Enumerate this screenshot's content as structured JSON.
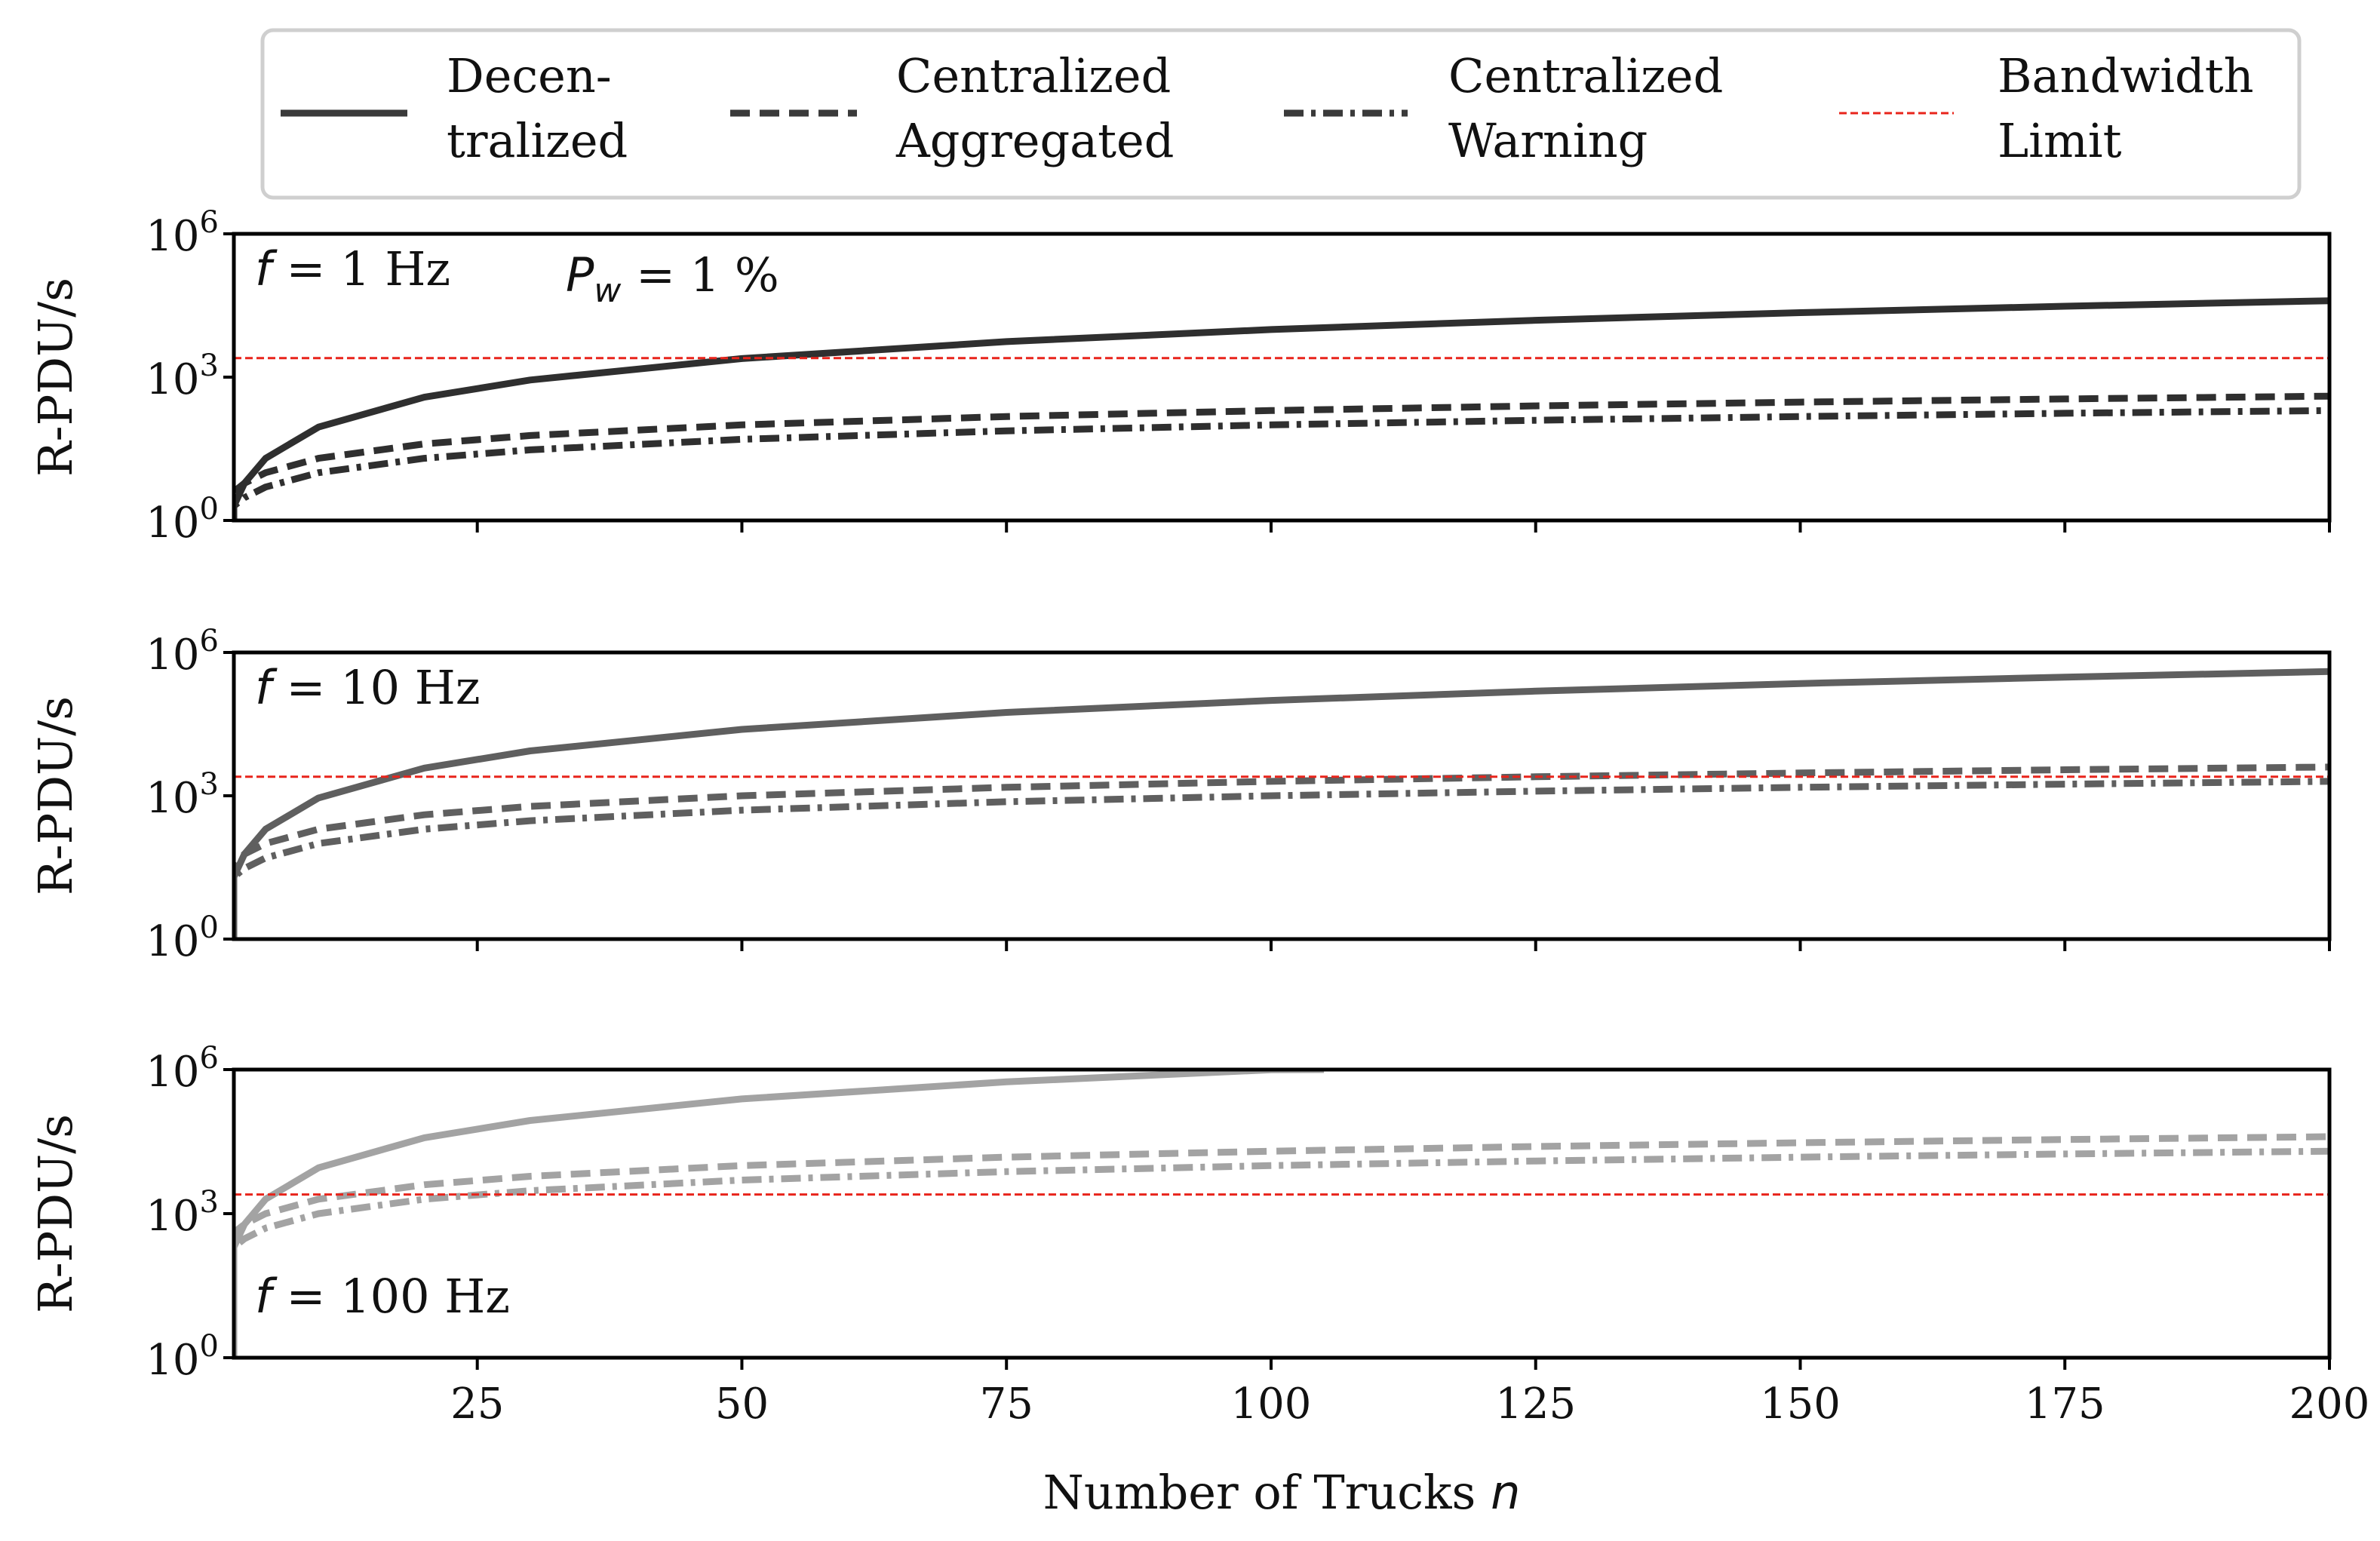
{
  "chart_data": {
    "type": "line",
    "xlabel": "Number of Trucks",
    "xlabel_var": "n",
    "xlim": [
      2,
      200
    ],
    "xticks": [
      25,
      50,
      75,
      100,
      125,
      150,
      175,
      200
    ],
    "yscale": "log",
    "ylim": [
      1,
      1000000
    ],
    "yticks": [
      {
        "base": "10",
        "exp": "0",
        "value": 1
      },
      {
        "base": "10",
        "exp": "3",
        "value": 1000
      },
      {
        "base": "10",
        "exp": "6",
        "value": 1000000
      }
    ],
    "ylabel": "R-PDU/s",
    "grid": false,
    "legend": {
      "placement": "top",
      "entries": [
        {
          "key": "decentralized",
          "lines": [
            "Decen-",
            "tralized"
          ],
          "style": "solid",
          "color": "#3a3a3a"
        },
        {
          "key": "aggregated",
          "lines": [
            "Centralized",
            "Aggregated"
          ],
          "style": "dashed",
          "color": "#3a3a3a"
        },
        {
          "key": "warning",
          "lines": [
            "Centralized",
            "Warning"
          ],
          "style": "dashdot",
          "color": "#3a3a3a"
        },
        {
          "key": "bandwidth",
          "lines": [
            "Bandwidth",
            "Limit"
          ],
          "style": "dotted",
          "color": "#e8241b"
        }
      ]
    },
    "bandwidth_limit": 2500,
    "pw_annotation": {
      "var": "P",
      "sub": "w",
      "text": "= 1 %"
    },
    "panels": [
      {
        "freq_hz": 1,
        "annotation": {
          "var": "f",
          "text": "= 1 Hz",
          "position": "top-left"
        },
        "color": "#2f2f2f",
        "series": [
          {
            "name": "Decentralized",
            "x": [
              2,
              3,
              5,
              10,
              20,
              30,
              50,
              75,
              100,
              125,
              150,
              175,
              200
            ],
            "y": [
              2,
              6,
              20,
              90,
              380,
              870,
              2450,
              5550,
              9900,
              15500,
              22350,
              30450,
              39800
            ]
          },
          {
            "name": "Centralized Aggregated",
            "x": [
              2,
              3,
              5,
              10,
              20,
              30,
              50,
              75,
              100,
              125,
              150,
              175,
              200
            ],
            "y": [
              4,
              6,
              10,
              20,
              40,
              60,
              100,
              150,
              200,
              250,
              300,
              350,
              400
            ]
          },
          {
            "name": "Centralized Warning",
            "x": [
              2,
              3,
              5,
              10,
              20,
              30,
              50,
              75,
              100,
              125,
              150,
              175,
              200
            ],
            "y": [
              2.0,
              3.0,
              5.0,
              10,
              20,
              30,
              50,
              75,
              100,
              125,
              150,
              175,
              200
            ]
          }
        ]
      },
      {
        "freq_hz": 10,
        "annotation": {
          "var": "f",
          "text": "= 10 Hz",
          "position": "top-left"
        },
        "color": "#5f5f5f",
        "series": [
          {
            "name": "Decentralized",
            "x": [
              2,
              3,
              5,
              10,
              20,
              30,
              50,
              75,
              100,
              125,
              150,
              175,
              200
            ],
            "y": [
              20,
              60,
              200,
              900,
              3800,
              8700,
              24500,
              55500,
              99000,
              155000,
              223500,
              304500,
              398000
            ]
          },
          {
            "name": "Centralized Aggregated",
            "x": [
              2,
              3,
              5,
              10,
              20,
              30,
              50,
              75,
              100,
              125,
              150,
              175,
              200
            ],
            "y": [
              40,
              60,
              100,
              200,
              400,
              600,
              1000,
              1500,
              2000,
              2500,
              3000,
              3500,
              4000
            ]
          },
          {
            "name": "Centralized Warning",
            "x": [
              2,
              3,
              5,
              10,
              20,
              30,
              50,
              75,
              100,
              125,
              150,
              175,
              200
            ],
            "y": [
              20,
              30,
              50,
              100,
              200,
              300,
              500,
              750,
              1000,
              1250,
              1500,
              1750,
              2000
            ]
          }
        ]
      },
      {
        "freq_hz": 100,
        "annotation": {
          "var": "f",
          "text": "= 100 Hz",
          "position": "bottom-left"
        },
        "color": "#a3a3a3",
        "series": [
          {
            "name": "Decentralized",
            "x": [
              2,
              3,
              5,
              10,
              20,
              30,
              50,
              75,
              100,
              105
            ],
            "y": [
              200,
              600,
              2000,
              9000,
              38000,
              87000,
              245000,
              555000,
              990000,
              1000000
            ]
          },
          {
            "name": "Centralized Aggregated",
            "x": [
              2,
              3,
              5,
              10,
              20,
              30,
              50,
              75,
              100,
              125,
              150,
              175,
              200
            ],
            "y": [
              400,
              600,
              1000,
              2000,
              4000,
              6000,
              10000,
              15000,
              20000,
              25000,
              30000,
              35000,
              40000
            ]
          },
          {
            "name": "Centralized Warning",
            "x": [
              2,
              3,
              5,
              10,
              20,
              30,
              50,
              75,
              100,
              125,
              150,
              175,
              200
            ],
            "y": [
              200,
              300,
              500,
              1000,
              2000,
              3000,
              5000,
              7500,
              10000,
              12500,
              15000,
              17500,
              20000
            ]
          }
        ]
      }
    ]
  }
}
